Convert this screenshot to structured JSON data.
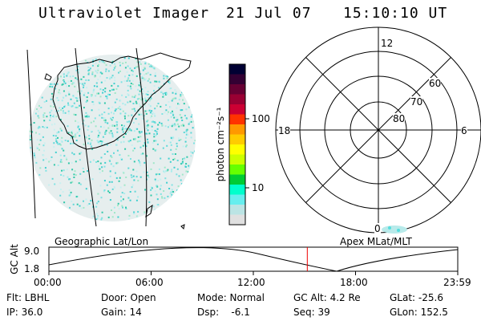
{
  "header": {
    "instrument": "Ultraviolet Imager",
    "date": "21 Jul 07",
    "time": "15:10:10 UT"
  },
  "colorbar": {
    "unit_label": "photon cm⁻²s⁻¹",
    "ticks": [
      "100",
      "10"
    ],
    "colors": [
      "#000033",
      "#330033",
      "#660033",
      "#990033",
      "#cc0033",
      "#ff3300",
      "#ff9900",
      "#ffcc00",
      "#ffff00",
      "#ccff00",
      "#66ff00",
      "#00cc33",
      "#00ffcc",
      "#66eeee",
      "#bbe4e4",
      "#e0e0e0"
    ]
  },
  "polar": {
    "mlt_labels": [
      "12",
      "18",
      "6",
      "0"
    ],
    "lat_labels": [
      "60",
      "70",
      "80"
    ]
  },
  "timeline": {
    "left_label": "Geographic Lat/Lon",
    "right_label": "Apex MLat/MLT",
    "axis_label": "GC Alt",
    "y_ticks": [
      "9.0",
      "1.8"
    ],
    "x_ticks": [
      "00:00",
      "06:00",
      "12:00",
      "18:00",
      "23:59"
    ],
    "current_time_fraction": 0.632
  },
  "status": {
    "row1": [
      {
        "key": "flt",
        "text": "Flt: LBHL"
      },
      {
        "key": "door",
        "text": "Door: Open"
      },
      {
        "key": "mode",
        "text": "Mode: Normal"
      },
      {
        "key": "gcalt",
        "text": "GC Alt: 4.2 Re"
      },
      {
        "key": "glat",
        "text": "GLat: -25.6"
      }
    ],
    "row2": [
      {
        "key": "ip",
        "text": "IP: 36.0"
      },
      {
        "key": "gain",
        "text": "Gain: 14"
      },
      {
        "key": "dsp",
        "text": "Dsp:    -6.1"
      },
      {
        "key": "seq",
        "text": "Seq: 39"
      },
      {
        "key": "glon",
        "text": "GLon: 152.5"
      }
    ]
  }
}
